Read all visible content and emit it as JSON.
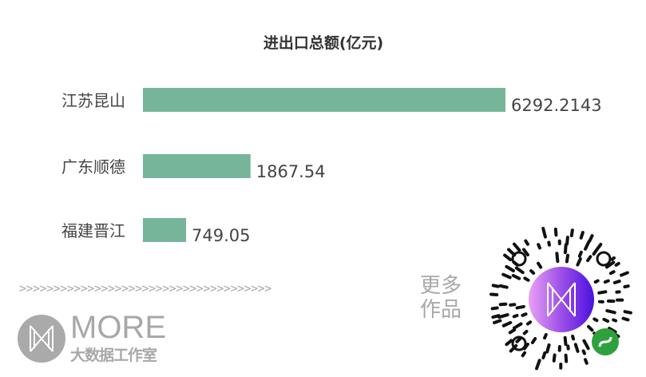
{
  "chart_data": {
    "type": "bar",
    "orientation": "horizontal",
    "title": "进出口总额(亿元)",
    "categories": [
      "江苏昆山",
      "广东顺德",
      "福建晋江"
    ],
    "values": [
      6292.2143,
      1867.54,
      749.05
    ],
    "value_labels": [
      "6292.2143",
      "1867.54",
      "749.05"
    ],
    "bar_color": "#76b59a",
    "grid": false,
    "legend": "none"
  },
  "footer": {
    "divider": ">>>>>>>>>>>>>>>>>>>>>>>>>>>>>>>>>>>>>",
    "brand": "MORE",
    "brand_sub": "大数据工作室",
    "more_works": "更多作品",
    "qr_icon": "wechat-mini-program-qr-icon"
  }
}
